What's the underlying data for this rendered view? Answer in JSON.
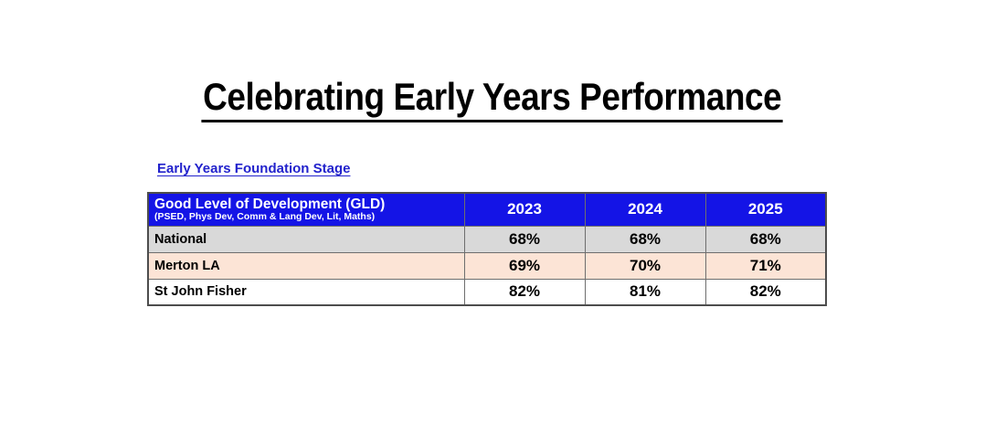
{
  "page": {
    "title": "Celebrating Early Years Performance",
    "section_heading": "Early Years Foundation Stage"
  },
  "table": {
    "header": {
      "label_main": "Good Level of Development (GLD)",
      "label_sub": "(PSED, Phys Dev, Comm & Lang Dev, Lit, Maths)",
      "years": [
        "2023",
        "2024",
        "2025"
      ]
    },
    "rows": [
      {
        "label": "National",
        "values": [
          "68%",
          "68%",
          "68%"
        ],
        "bg": "#D9D9D9"
      },
      {
        "label": "Merton LA",
        "values": [
          "69%",
          "70%",
          "71%"
        ],
        "bg": "#FCE4D6"
      },
      {
        "label": "St John Fisher",
        "values": [
          "82%",
          "81%",
          "82%"
        ],
        "bg": "#FFFFFF"
      }
    ]
  },
  "colors": {
    "header_blue": "#1414E6",
    "header_text": "#FFFFFF",
    "section_heading_blue": "#2222CC",
    "row_national_gray": "#D9D9D9",
    "row_merton_peach": "#FCE4D6",
    "row_school_white": "#FFFFFF",
    "title_black": "#000000",
    "border_gray": "#6E6E6E"
  },
  "chart_data": {
    "type": "table",
    "title": "Good Level of Development (GLD)",
    "subtitle": "(PSED, Phys Dev, Comm & Lang Dev, Lit, Maths)",
    "columns": [
      "2023",
      "2024",
      "2025"
    ],
    "rows": [
      {
        "name": "National",
        "values": [
          68,
          68,
          68
        ]
      },
      {
        "name": "Merton LA",
        "values": [
          69,
          70,
          71
        ]
      },
      {
        "name": "St John Fisher",
        "values": [
          82,
          81,
          82
        ]
      }
    ],
    "unit": "%"
  }
}
